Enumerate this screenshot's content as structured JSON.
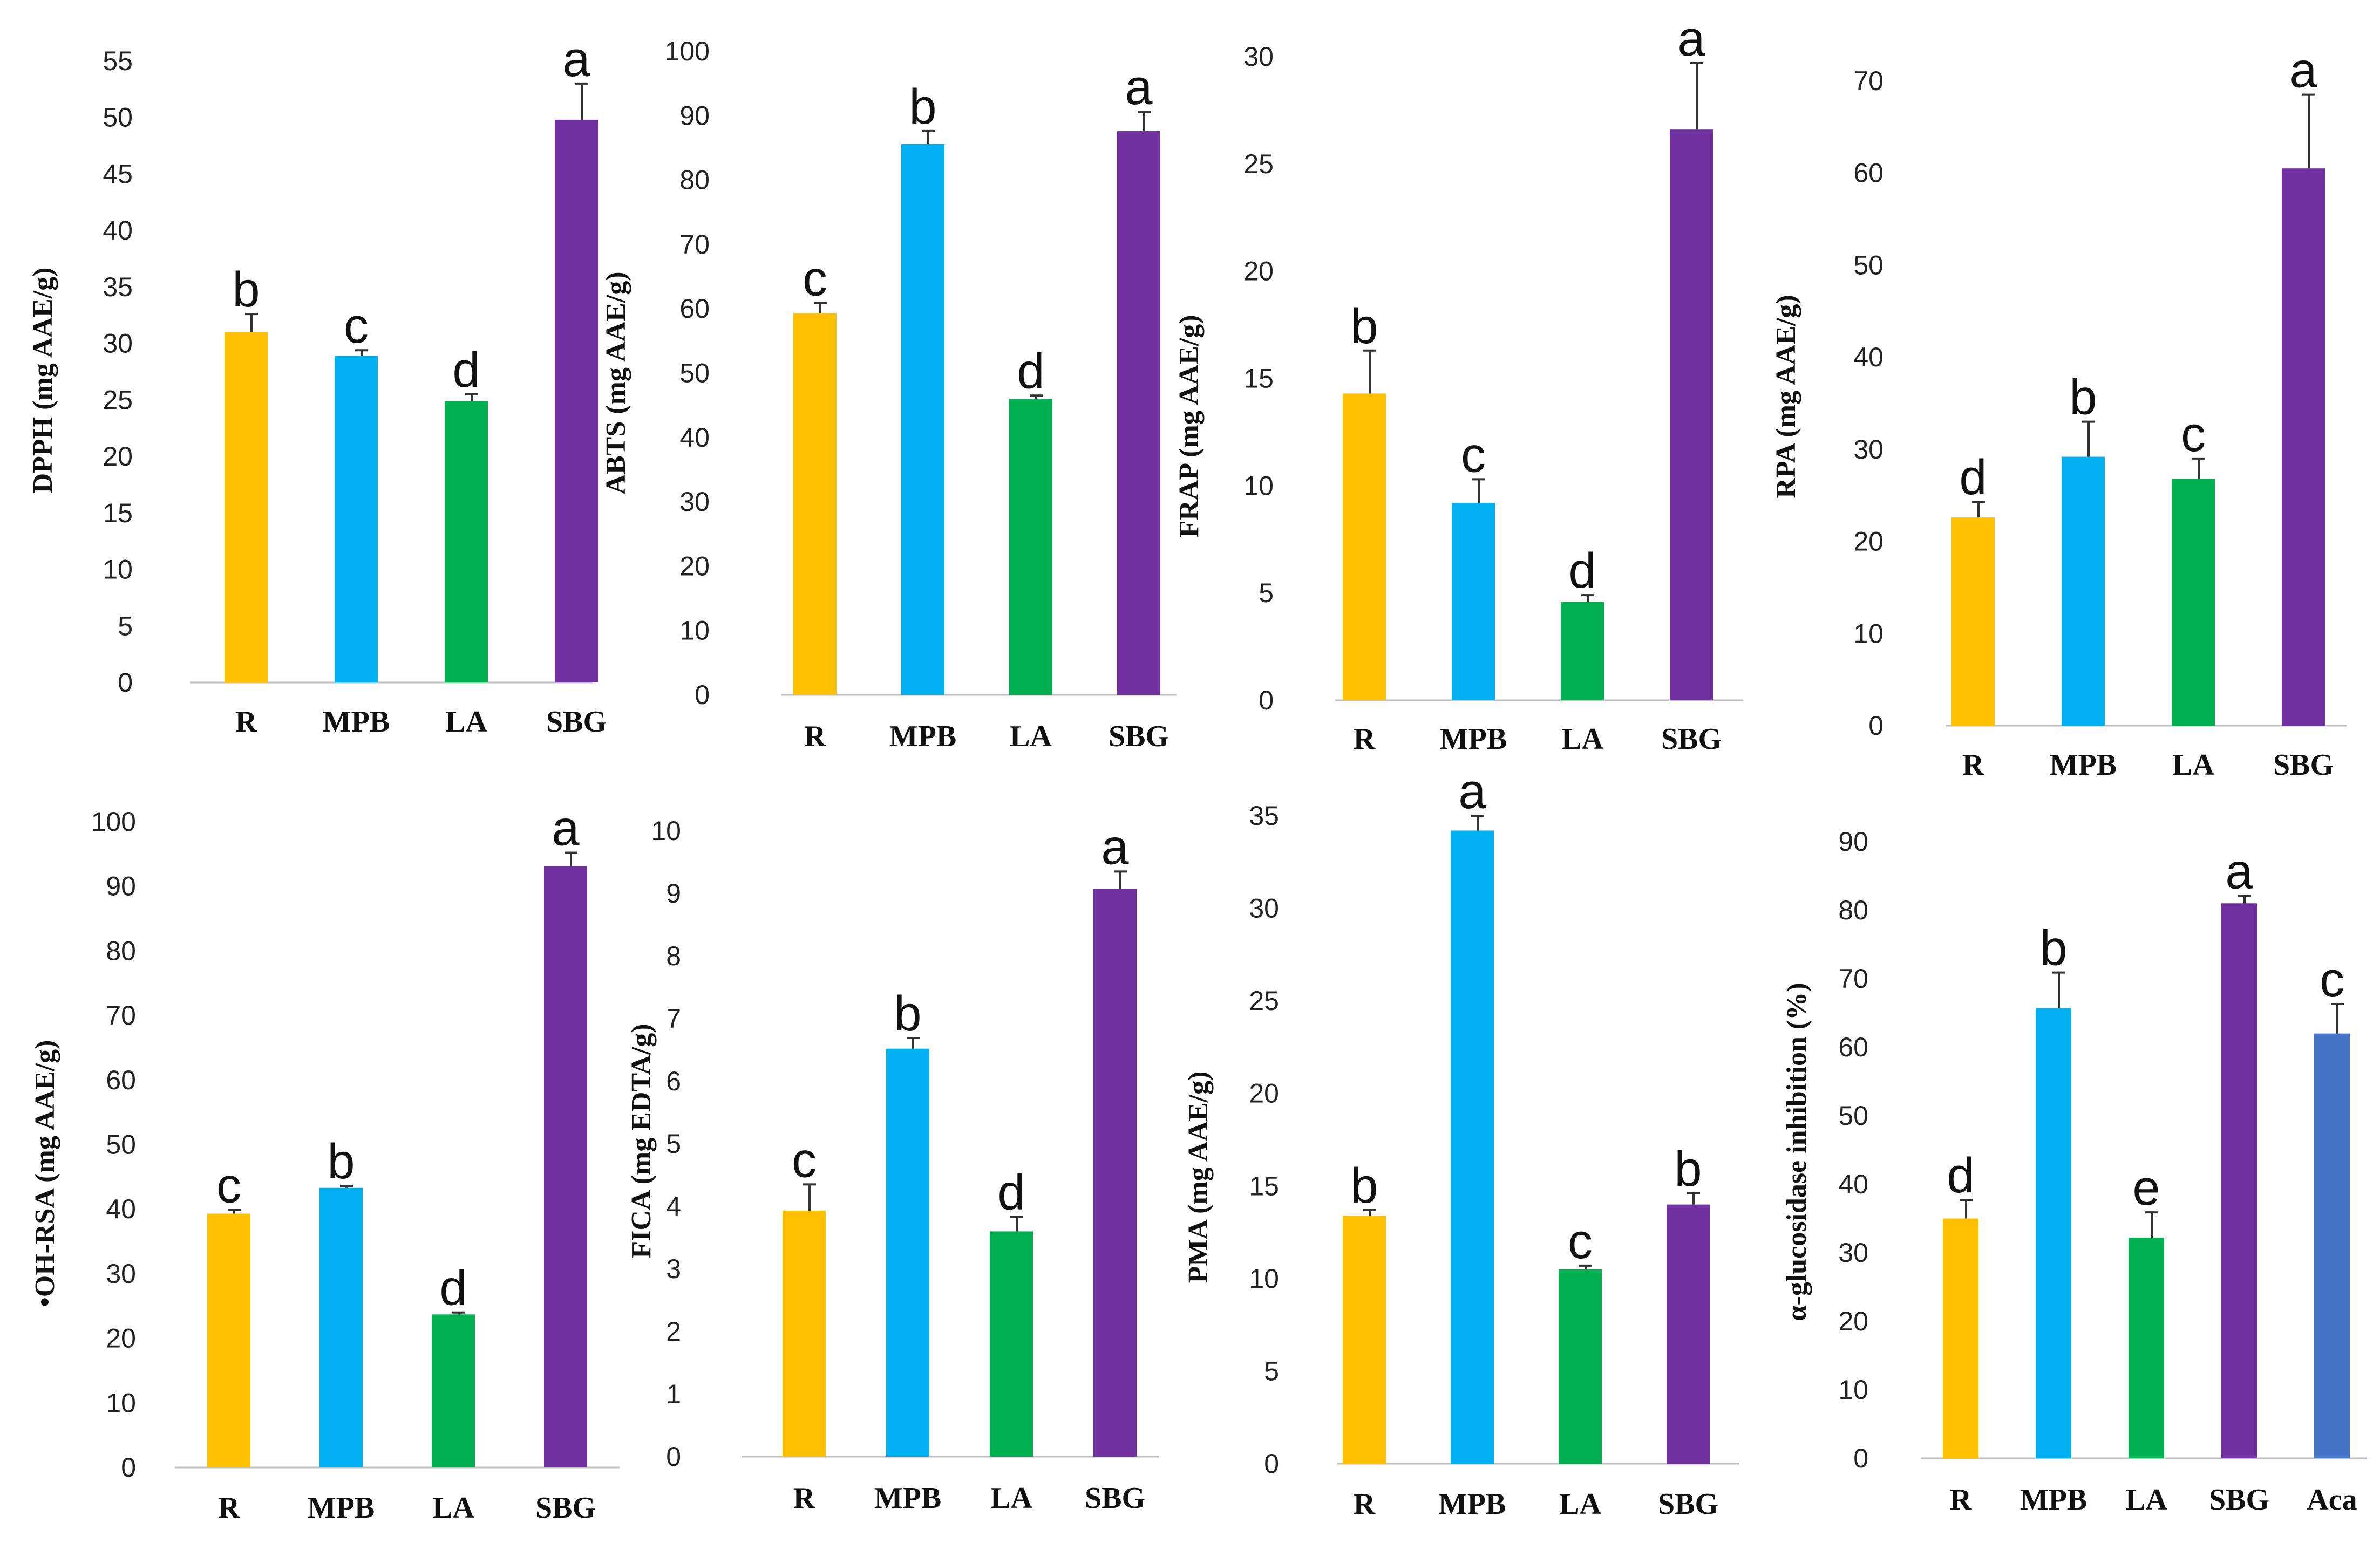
{
  "colors": {
    "R": "#FFC000",
    "MPB": "#00B0F0",
    "LA": "#00B050",
    "SBG": "#7030A0",
    "Aca": "#4472C4",
    "axis": "#bfbfbf",
    "errorbar": "#333333"
  },
  "chart_data": [
    {
      "type": "bar",
      "panel": "DPPH",
      "ylabel": "DPPH  (mg AAE/g)",
      "ylim": [
        0,
        55
      ],
      "yticks": [
        0,
        5,
        10,
        15,
        20,
        25,
        30,
        35,
        40,
        45,
        50,
        55
      ],
      "categories": [
        "R",
        "MPB",
        "LA",
        "SBG"
      ],
      "values": [
        31.0,
        28.9,
        24.9,
        49.8
      ],
      "errors": [
        1.6,
        0.5,
        0.6,
        3.2
      ],
      "letters": [
        "b",
        "c",
        "d",
        "a"
      ]
    },
    {
      "type": "bar",
      "panel": "ABTS",
      "ylabel": "ABTS (mg AAE/g)",
      "ylim": [
        0,
        100
      ],
      "yticks": [
        0,
        10,
        20,
        30,
        40,
        50,
        60,
        70,
        80,
        90,
        100
      ],
      "categories": [
        "R",
        "MPB",
        "LA",
        "SBG"
      ],
      "values": [
        59.3,
        85.6,
        46.0,
        87.6
      ],
      "errors": [
        1.6,
        2.0,
        0.5,
        3.0
      ],
      "letters": [
        "c",
        "b",
        "d",
        "a"
      ]
    },
    {
      "type": "bar",
      "panel": "FRAP",
      "ylabel": "FRAP (mg AAE/g)",
      "ylim": [
        0,
        30
      ],
      "yticks": [
        0,
        5,
        10,
        15,
        20,
        25,
        30
      ],
      "categories": [
        "R",
        "MPB",
        "LA",
        "SBG"
      ],
      "values": [
        14.3,
        9.2,
        4.6,
        26.6
      ],
      "errors": [
        2.0,
        1.1,
        0.3,
        3.1
      ],
      "letters": [
        "b",
        "c",
        "d",
        "a"
      ]
    },
    {
      "type": "bar",
      "panel": "RPA",
      "ylabel": "RPA (mg AAE/g)",
      "ylim": [
        0,
        70
      ],
      "yticks": [
        0,
        10,
        20,
        30,
        40,
        50,
        60,
        70
      ],
      "categories": [
        "R",
        "MPB",
        "LA",
        "SBG"
      ],
      "values": [
        22.6,
        29.2,
        26.8,
        60.5
      ],
      "errors": [
        1.7,
        3.8,
        2.2,
        8.0
      ],
      "letters": [
        "d",
        "b",
        "c",
        "a"
      ]
    },
    {
      "type": "bar",
      "panel": "OH-RSA",
      "ylabel": "•OH-RSA (mg AAE/g)",
      "ylim": [
        0,
        100
      ],
      "yticks": [
        0,
        10,
        20,
        30,
        40,
        50,
        60,
        70,
        80,
        90,
        100
      ],
      "categories": [
        "R",
        "MPB",
        "LA",
        "SBG"
      ],
      "values": [
        39.3,
        43.3,
        23.7,
        93.1
      ],
      "errors": [
        0.6,
        0.3,
        0.3,
        2.1
      ],
      "letters": [
        "c",
        "b",
        "d",
        "a"
      ]
    },
    {
      "type": "bar",
      "panel": "FICA",
      "ylabel": "FICA (mg EDTA/g)",
      "ylim": [
        0,
        10
      ],
      "yticks": [
        0,
        1,
        2,
        3,
        4,
        5,
        6,
        7,
        8,
        9,
        10
      ],
      "categories": [
        "R",
        "MPB",
        "LA",
        "SBG"
      ],
      "values": [
        3.93,
        6.52,
        3.6,
        9.07
      ],
      "errors": [
        0.42,
        0.17,
        0.23,
        0.28
      ],
      "letters": [
        "c",
        "b",
        "d",
        "a"
      ]
    },
    {
      "type": "bar",
      "panel": "PMA",
      "ylabel": "PMA (mg AAE/g)",
      "ylim": [
        0,
        35
      ],
      "yticks": [
        0,
        5,
        10,
        15,
        20,
        25,
        30,
        35
      ],
      "categories": [
        "R",
        "MPB",
        "LA",
        "SBG"
      ],
      "values": [
        13.4,
        34.2,
        10.5,
        14.0
      ],
      "errors": [
        0.3,
        0.8,
        0.2,
        0.6
      ],
      "letters": [
        "b",
        "a",
        "c",
        "b"
      ]
    },
    {
      "type": "bar",
      "panel": "alpha-glucosidase",
      "ylabel": "α-glucosidase inhibition (%)",
      "ylim": [
        0,
        90
      ],
      "yticks": [
        0,
        10,
        20,
        30,
        40,
        50,
        60,
        70,
        80,
        90
      ],
      "categories": [
        "R",
        "MPB",
        "LA",
        "SBG",
        "Aca"
      ],
      "values": [
        35.0,
        65.7,
        32.2,
        81.0,
        62.0
      ],
      "errors": [
        2.7,
        5.2,
        3.7,
        1.1,
        4.3
      ],
      "letters": [
        "d",
        "b",
        "e",
        "a",
        "c"
      ]
    }
  ]
}
